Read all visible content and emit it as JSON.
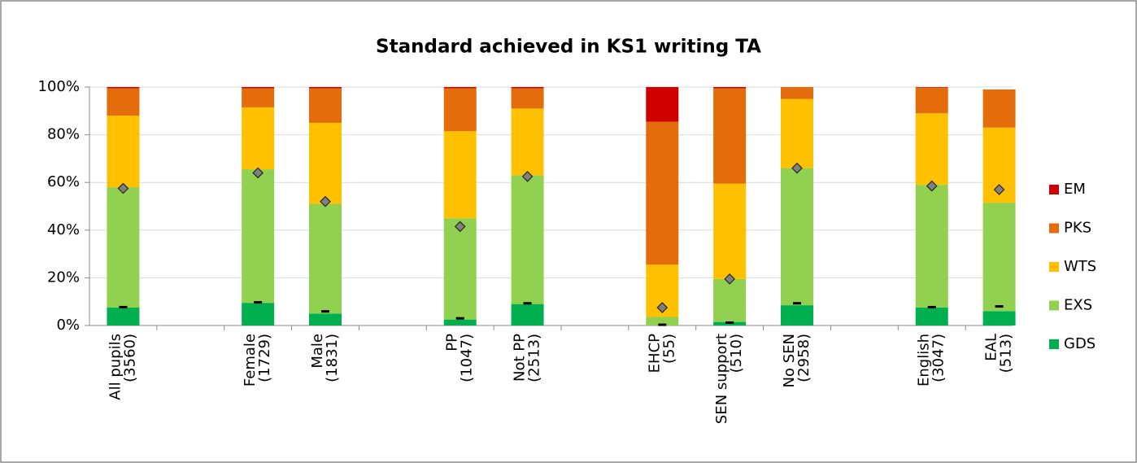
{
  "chart_data": {
    "type": "stacked_bar",
    "title": "Standard achieved in KS1 writing TA",
    "categories": [
      "All pupils (3560)",
      null,
      "Female (1729)",
      "Male (1831)",
      null,
      "PP (1047)",
      "Not PP (2513)",
      null,
      "EHCP (55)",
      "SEN support (510)",
      "No SEN (2958)",
      null,
      "English (3047)",
      "EAL (513)"
    ],
    "series": [
      {
        "name": "GDS",
        "color": "#00b050",
        "values": [
          7.5,
          null,
          9.5,
          5,
          null,
          2.5,
          9,
          null,
          0,
          1.5,
          8.5,
          null,
          7.5,
          6
        ]
      },
      {
        "name": "EXS",
        "color": "#92d050",
        "values": [
          50.5,
          null,
          56,
          46,
          null,
          42.5,
          54,
          null,
          3.6,
          18,
          57.5,
          null,
          51.5,
          45.5
        ]
      },
      {
        "name": "WTS",
        "color": "#ffc000",
        "values": [
          30,
          null,
          26,
          34,
          null,
          36.5,
          28,
          null,
          21.9,
          40,
          29,
          null,
          30,
          31.5
        ]
      },
      {
        "name": "PKS",
        "color": "#e46c0a",
        "values": [
          11.5,
          null,
          8,
          14.5,
          null,
          18,
          8.5,
          null,
          60,
          40,
          5,
          null,
          10.8,
          16
        ]
      },
      {
        "name": "EM",
        "color": "#d00000",
        "values": [
          0.5,
          null,
          0.5,
          0.5,
          null,
          0.5,
          0.5,
          null,
          14.5,
          0.5,
          0,
          null,
          0.2,
          0
        ]
      }
    ],
    "overlays": [
      {
        "marker": "diamond",
        "color": "#808080",
        "values": [
          57.5,
          null,
          64,
          52,
          null,
          41.5,
          62.5,
          null,
          7.5,
          19.5,
          66,
          null,
          58.5,
          57
        ]
      },
      {
        "marker": "dash",
        "color": "#000000",
        "values": [
          7.7,
          null,
          9.7,
          5.9,
          null,
          3,
          9.3,
          null,
          0.3,
          1.2,
          9.3,
          null,
          7.7,
          8
        ]
      }
    ],
    "ylim": [
      0,
      100
    ],
    "yticks": [
      {
        "value": 0,
        "label": "0%"
      },
      {
        "value": 20,
        "label": "20%"
      },
      {
        "value": 40,
        "label": "40%"
      },
      {
        "value": 60,
        "label": "60%"
      },
      {
        "value": 80,
        "label": "80%"
      },
      {
        "value": 100,
        "label": "100%"
      }
    ],
    "grid": true,
    "legend": "right"
  }
}
